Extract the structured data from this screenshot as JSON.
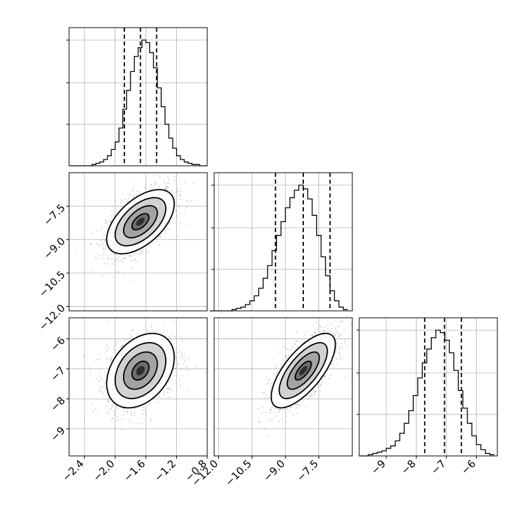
{
  "chart_data": {
    "type": "corner",
    "parameters": [
      {
        "hist_x": [
          -2.575,
          -2.525,
          -2.475,
          -2.425,
          -2.375,
          -2.325,
          -2.275,
          -2.225,
          -2.175,
          -2.125,
          -2.075,
          -2.025,
          -1.975,
          -1.925,
          -1.875,
          -1.825,
          -1.775,
          -1.725,
          -1.675,
          -1.625,
          -1.575,
          -1.525,
          -1.475,
          -1.425,
          -1.375,
          -1.325,
          -1.275,
          -1.225,
          -1.175,
          -1.125,
          -1.075,
          -1.025,
          -0.975,
          -0.925,
          -0.875,
          -0.825
        ],
        "hist_counts": [
          0,
          0,
          0,
          0,
          0,
          0,
          0.01,
          0.02,
          0.03,
          0.05,
          0.08,
          0.13,
          0.19,
          0.3,
          0.45,
          0.6,
          0.75,
          0.87,
          0.94,
          1.0,
          0.98,
          0.9,
          0.78,
          0.62,
          0.47,
          0.33,
          0.22,
          0.14,
          0.08,
          0.05,
          0.03,
          0.02,
          0.01,
          0.01,
          0,
          0
        ],
        "quantiles": [
          -1.88,
          -1.67,
          -1.46
        ],
        "ticks": [
          "−2.4",
          "−2.0",
          "−1.6",
          "−1.2",
          "−0.8"
        ],
        "tick_values": [
          -2.4,
          -2.0,
          -1.6,
          -1.2,
          -0.8
        ],
        "range": [
          -2.6,
          -0.8
        ]
      },
      {
        "hist_x": [
          -12.3,
          -12.1,
          -11.9,
          -11.7,
          -11.5,
          -11.3,
          -11.1,
          -10.9,
          -10.7,
          -10.5,
          -10.3,
          -10.1,
          -9.9,
          -9.7,
          -9.5,
          -9.3,
          -9.1,
          -8.9,
          -8.7,
          -8.5,
          -8.3,
          -8.1,
          -7.9,
          -7.7,
          -7.5,
          -7.3,
          -7.1,
          -6.9,
          -6.7,
          -6.5,
          -6.3
        ],
        "hist_counts": [
          0,
          0,
          0,
          0,
          0,
          0.01,
          0.02,
          0.03,
          0.05,
          0.08,
          0.12,
          0.18,
          0.26,
          0.36,
          0.48,
          0.6,
          0.71,
          0.82,
          0.9,
          0.96,
          1.0,
          0.97,
          0.89,
          0.76,
          0.6,
          0.43,
          0.28,
          0.16,
          0.08,
          0.03,
          0.01
        ],
        "quantiles": [
          -9.45,
          -8.2,
          -7.0
        ],
        "ticks": [
          "−12.0",
          "−10.5",
          "−9.0",
          "−7.5"
        ],
        "tick_values": [
          -12.0,
          -10.5,
          -9.0,
          -7.5
        ],
        "range": [
          -12.2,
          -6.0
        ]
      },
      {
        "hist_x": [
          -9.825,
          -9.675,
          -9.525,
          -9.375,
          -9.225,
          -9.075,
          -8.925,
          -8.775,
          -8.625,
          -8.475,
          -8.325,
          -8.175,
          -8.025,
          -7.875,
          -7.725,
          -7.575,
          -7.425,
          -7.275,
          -7.125,
          -6.975,
          -6.825,
          -6.675,
          -6.525,
          -6.375,
          -6.225,
          -6.075,
          -5.925,
          -5.775,
          -5.625,
          -5.475
        ],
        "hist_counts": [
          0,
          0,
          0.01,
          0.02,
          0.03,
          0.04,
          0.06,
          0.08,
          0.12,
          0.18,
          0.26,
          0.36,
          0.48,
          0.62,
          0.74,
          0.85,
          0.94,
          1.0,
          0.98,
          0.92,
          0.82,
          0.68,
          0.52,
          0.38,
          0.26,
          0.16,
          0.09,
          0.05,
          0.02,
          0.01
        ],
        "quantiles": [
          -7.72,
          -7.06,
          -6.5
        ],
        "ticks": [
          "−9",
          "−8",
          "−7",
          "−6"
        ],
        "tick_values": [
          -9,
          -8,
          -7,
          -6
        ],
        "range": [
          -9.9,
          -5.3
        ]
      }
    ],
    "panel_ylabels": {
      "row1": [
        "−7.5",
        "−9.0",
        "−10.5",
        "−12.0"
      ],
      "row1_values": [
        -7.5,
        -9.0,
        -10.5,
        -12.0
      ],
      "row2": [
        "−6",
        "−7",
        "−8",
        "−9"
      ],
      "row2_values": [
        -6,
        -7,
        -8,
        -9
      ]
    },
    "scatter_2d": [
      {
        "px": 0,
        "py": 1,
        "center": [
          -1.67,
          -8.2
        ],
        "sx": 0.22,
        "sy": 0.72,
        "rho": 0.55
      },
      {
        "px": 0,
        "py": 2,
        "center": [
          -1.67,
          -7.06
        ],
        "sx": 0.22,
        "sy": 0.62,
        "rho": 0.35
      },
      {
        "px": 1,
        "py": 2,
        "center": [
          -8.2,
          -7.06
        ],
        "sx": 0.72,
        "sy": 0.62,
        "rho": 0.7
      }
    ],
    "contour_levels_sigma": [
      0.5,
      1.0,
      1.5,
      2.0
    ],
    "grid": true
  }
}
